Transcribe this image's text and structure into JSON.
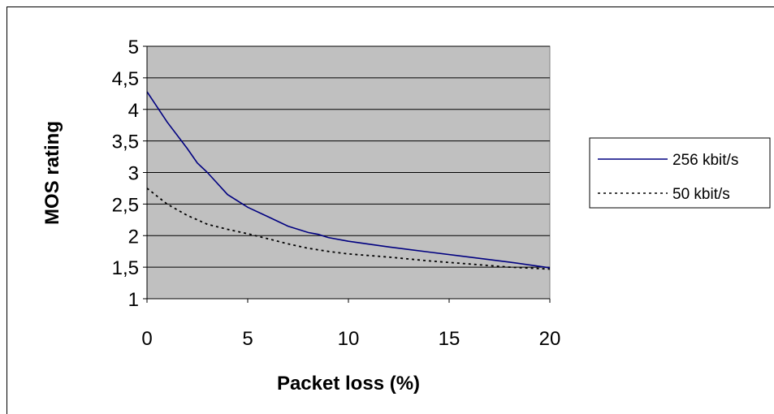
{
  "chart_data": {
    "type": "line",
    "xlabel": "Packet loss (%)",
    "ylabel": "MOS rating",
    "xlim": [
      0,
      20
    ],
    "ylim": [
      1,
      5
    ],
    "x_ticks": [
      "0",
      "5",
      "10",
      "15",
      "20"
    ],
    "y_ticks": [
      "1",
      "1,5",
      "2",
      "2,5",
      "3",
      "3,5",
      "4",
      "4,5",
      "5"
    ],
    "grid": "horizontal",
    "legend_position": "right",
    "plot_background": "#c0c0c0",
    "series": [
      {
        "name": "256 kbit/s",
        "color": "#000080",
        "style": "solid",
        "x": [
          0,
          1,
          2,
          2.5,
          3,
          4,
          5,
          6,
          7,
          7.5,
          8,
          8.5,
          9,
          10,
          12,
          14,
          16,
          18,
          20
        ],
        "y": [
          4.28,
          3.8,
          3.38,
          3.15,
          3.0,
          2.65,
          2.45,
          2.3,
          2.15,
          2.1,
          2.05,
          2.02,
          1.97,
          1.91,
          1.82,
          1.74,
          1.66,
          1.58,
          1.49
        ]
      },
      {
        "name": "50 kbit/s",
        "color": "#000000",
        "style": "dotted",
        "x": [
          0,
          1,
          2,
          2.5,
          3,
          4,
          5,
          6,
          7,
          8,
          9,
          10,
          12,
          14,
          16,
          18,
          20
        ],
        "y": [
          2.75,
          2.5,
          2.32,
          2.25,
          2.18,
          2.1,
          2.03,
          1.95,
          1.87,
          1.8,
          1.75,
          1.71,
          1.66,
          1.6,
          1.55,
          1.5,
          1.47
        ]
      }
    ]
  }
}
